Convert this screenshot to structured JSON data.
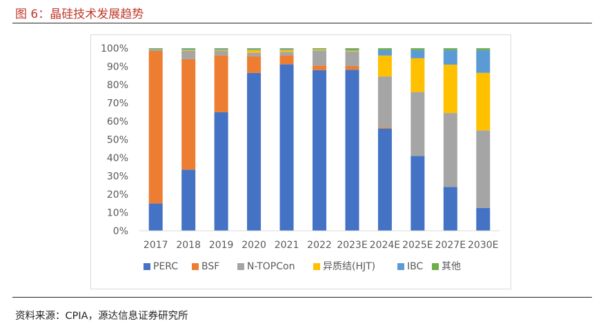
{
  "header": {
    "title": "图 6：晶硅技术发展趋势"
  },
  "footer": {
    "source": "资料来源：CPIA，源达信息证券研究所"
  },
  "chart_data": {
    "type": "bar",
    "stacked": true,
    "categories": [
      "2017",
      "2018",
      "2019",
      "2020",
      "2021",
      "2022",
      "2023E",
      "2024E",
      "2025E",
      "2027E",
      "2030E"
    ],
    "y_tick_labels": [
      "0%",
      "10%",
      "20%",
      "30%",
      "40%",
      "50%",
      "60%",
      "70%",
      "80%",
      "90%",
      "100%"
    ],
    "ylim": [
      0,
      100
    ],
    "legend_position": "bottom",
    "series": [
      {
        "name": "PERC",
        "color": "#4472c4",
        "values": [
          15,
          33.5,
          65,
          86.5,
          91.2,
          88.0,
          88.2,
          56.0,
          41.0,
          24.0,
          12.5
        ]
      },
      {
        "name": "BSF",
        "color": "#ed7d31",
        "values": [
          83.5,
          60.5,
          31.0,
          9.0,
          4.8,
          2.5,
          2.0,
          0.5,
          0,
          0,
          0
        ]
      },
      {
        "name": "N-TOPCon",
        "color": "#a5a5a5",
        "values": [
          1.0,
          4.5,
          2.5,
          2.0,
          2.0,
          8.3,
          8.0,
          28.0,
          35.0,
          40.5,
          42.5
        ]
      },
      {
        "name": "异质结(HJT)",
        "color": "#ffc000",
        "values": [
          0,
          0.5,
          0.5,
          1.5,
          1.0,
          0.5,
          0.5,
          11.5,
          18.5,
          26.5,
          31.5
        ]
      },
      {
        "name": "IBC",
        "color": "#5b9bd5",
        "values": [
          0,
          0.5,
          0.5,
          0.5,
          0.5,
          0.2,
          0.5,
          3.0,
          4.5,
          8.0,
          12.5
        ]
      },
      {
        "name": "其他",
        "color": "#70ad47",
        "values": [
          0.5,
          0.5,
          0.5,
          0.5,
          0.5,
          0.5,
          0.8,
          1.0,
          1.0,
          1.0,
          1.0
        ]
      }
    ]
  }
}
